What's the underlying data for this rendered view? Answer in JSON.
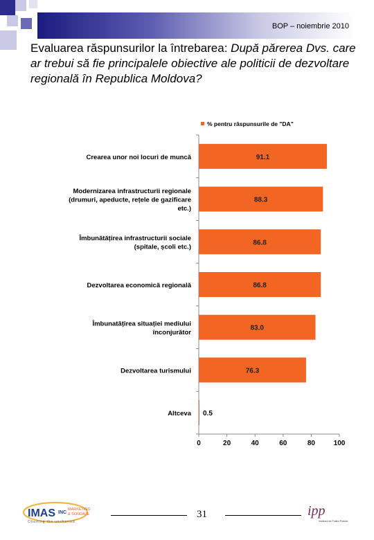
{
  "header": {
    "text": "BOP – noiembrie 2010"
  },
  "title": {
    "bold": "Evaluarea răspunsurilor la întrebarea:",
    "question": " După părerea Dvs. care ar trebui să fie principalele obiective ale politicii de dezvoltare regională în Republica Moldova?"
  },
  "chart_data": {
    "type": "bar",
    "orientation": "horizontal",
    "legend": "% pentru răspunsurile de \"DA\"",
    "legend_position": "top-right",
    "categories": [
      "Crearea unor noi locuri de muncă",
      "Modernizarea infrastructurii regionale (drumuri, apeducte, rețele de gazificare etc.)",
      "Îmbunătățirea infrastructurii sociale (spitale, școli etc.)",
      "Dezvoltarea economică regională",
      "Îmbunatățirea situației mediului înconjurător",
      "Dezvoltarea turismului",
      "Altceva"
    ],
    "category_lines": [
      [
        "Crearea unor noi locuri de muncă"
      ],
      [
        "Modernizarea infrastructurii regionale",
        "(drumuri, apeducte, rețele de gazificare",
        "etc.)"
      ],
      [
        "Îmbunătățirea infrastructurii sociale",
        "(spitale, școli etc.)"
      ],
      [
        "Dezvoltarea economică regională"
      ],
      [
        "Îmbunatățirea situației mediului",
        "înconjurător"
      ],
      [
        "Dezvoltarea turismului"
      ],
      [
        "Altceva"
      ]
    ],
    "values": [
      91.1,
      88.3,
      86.8,
      86.8,
      83.0,
      76.3,
      0.5
    ],
    "value_labels": [
      "91.1",
      "88.3",
      "86.8",
      "86.8",
      "83.0",
      "76.3",
      "0.5"
    ],
    "xlim": [
      0,
      100
    ],
    "xticks": [
      "0",
      "20",
      "40",
      "60",
      "80",
      "100"
    ],
    "grid": false,
    "bar_color": "#f26522"
  },
  "footer": {
    "page_number": "31",
    "logo_imas": {
      "main": "IMAS",
      "sub": "INC",
      "tag1": "MARKETING",
      "tag2": "& SONDAJE",
      "slogan": "Charting the uncharted"
    },
    "logo_ipp": {
      "main": "ipp",
      "caption": "Institutul de Politici Publice"
    }
  }
}
